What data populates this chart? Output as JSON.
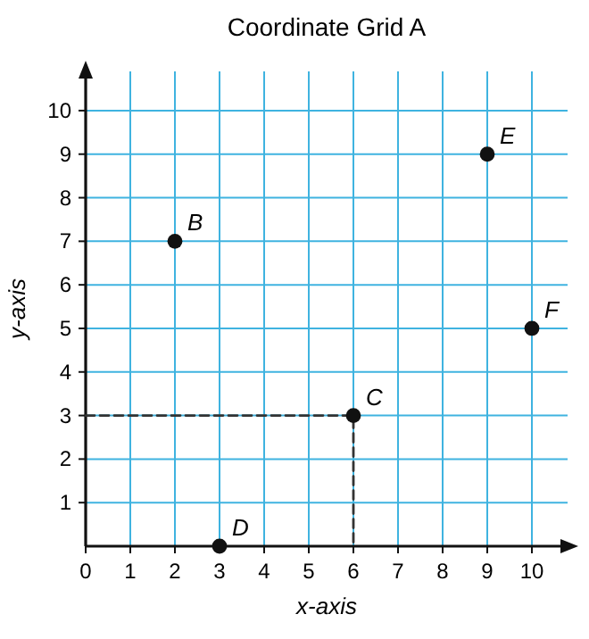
{
  "chart_data": {
    "type": "scatter",
    "title": "Coordinate Grid A",
    "xlabel": "x-axis",
    "ylabel": "y-axis",
    "xlim": [
      0,
      10.8
    ],
    "ylim": [
      0,
      10.9
    ],
    "xticks": [
      0,
      1,
      2,
      3,
      4,
      5,
      6,
      7,
      8,
      9,
      10
    ],
    "yticks": [
      1,
      2,
      3,
      4,
      5,
      6,
      7,
      8,
      9,
      10
    ],
    "grid": true,
    "series": [
      {
        "type": "line",
        "color": "#333333",
        "line_style": "dashed",
        "marker": "none",
        "x": [
          0,
          6,
          6
        ],
        "values": [
          3,
          3,
          0
        ]
      },
      {
        "color": "#111111",
        "marker": "circle",
        "x": [
          2,
          6,
          3,
          9,
          10
        ],
        "values": [
          7,
          3,
          0,
          9,
          5
        ]
      }
    ],
    "annotations": [
      {
        "text": "B",
        "x": 2,
        "y": 7
      },
      {
        "text": "C",
        "x": 6,
        "y": 3
      },
      {
        "text": "D",
        "x": 3,
        "y": 0
      },
      {
        "text": "E",
        "x": 9,
        "y": 9
      },
      {
        "text": "F",
        "x": 10,
        "y": 5
      }
    ]
  }
}
